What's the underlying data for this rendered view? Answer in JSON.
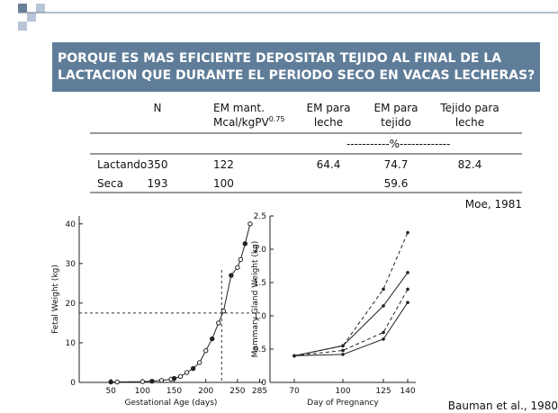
{
  "header": {
    "title_lines": [
      "PORQUE ES MAS EFICIENTE DEPOSITAR TEJIDO AL FINAL DE LA",
      "LACTACION QUE DURANTE EL PERIODO SECO EN VACAS LECHERAS?"
    ]
  },
  "table": {
    "headers": [
      [
        "N"
      ],
      [
        "EM mant.",
        "Mcal/kgPV"
      ],
      [
        "EM para",
        "leche"
      ],
      [
        "EM para",
        "tejido"
      ],
      [
        "Tejido para",
        "leche"
      ]
    ],
    "exponent": "0.75",
    "unit_row": "-----------%-------------",
    "rows": [
      {
        "label": "Lactando",
        "cells": [
          350,
          122,
          64.4,
          74.7,
          82.4
        ]
      },
      {
        "label": "Seca",
        "cells": [
          193,
          100,
          null,
          59.6,
          null
        ]
      }
    ],
    "source": "Moe, 1981"
  },
  "charts": [
    {
      "type": "scatter",
      "ylabel": "Fetal   Weight  (kg)",
      "xlabel": "Gestational   Age  (days)",
      "xlim": [
        0,
        290
      ],
      "ylim": [
        0,
        42
      ],
      "xticks": [
        50,
        100,
        150,
        200,
        250,
        285
      ],
      "yticks": [
        0,
        10,
        20,
        30,
        40
      ],
      "x": [
        50,
        60,
        100,
        115,
        130,
        145,
        150,
        160,
        170,
        180,
        190,
        200,
        210,
        220,
        228,
        240,
        250,
        255,
        262,
        270
      ],
      "y": [
        0.1,
        0.1,
        0.2,
        0.3,
        0.5,
        0.8,
        1.0,
        1.5,
        2.5,
        3.5,
        5,
        8,
        11,
        15,
        18,
        27,
        29,
        31,
        35,
        40
      ],
      "ref_x": 225,
      "ref_y": 17.5
    },
    {
      "type": "line",
      "ylabel": "Mammary  Gland  Weight  (kg)",
      "xlabel": "Day  of  Pregnancy",
      "xlim": [
        55,
        145
      ],
      "ylim": [
        0,
        2.5
      ],
      "xticks": [
        70,
        100,
        125,
        140
      ],
      "yticks": [
        0,
        0.5,
        {
          "value": 1,
          "label": "1.0"
        },
        1.5,
        {
          "value": 2,
          "label": "2.0"
        },
        2.5
      ],
      "x": [
        70,
        100,
        125,
        140
      ],
      "series": [
        {
          "dash": true,
          "values": [
            0.4,
            0.55,
            1.4,
            2.25
          ]
        },
        {
          "dash": false,
          "values": [
            0.4,
            0.55,
            1.15,
            1.65
          ]
        },
        {
          "dash": true,
          "values": [
            0.4,
            0.48,
            0.75,
            1.4
          ]
        },
        {
          "dash": false,
          "values": [
            0.4,
            0.42,
            0.65,
            1.2
          ]
        }
      ],
      "source": "Bauman et al., 1980"
    }
  ]
}
